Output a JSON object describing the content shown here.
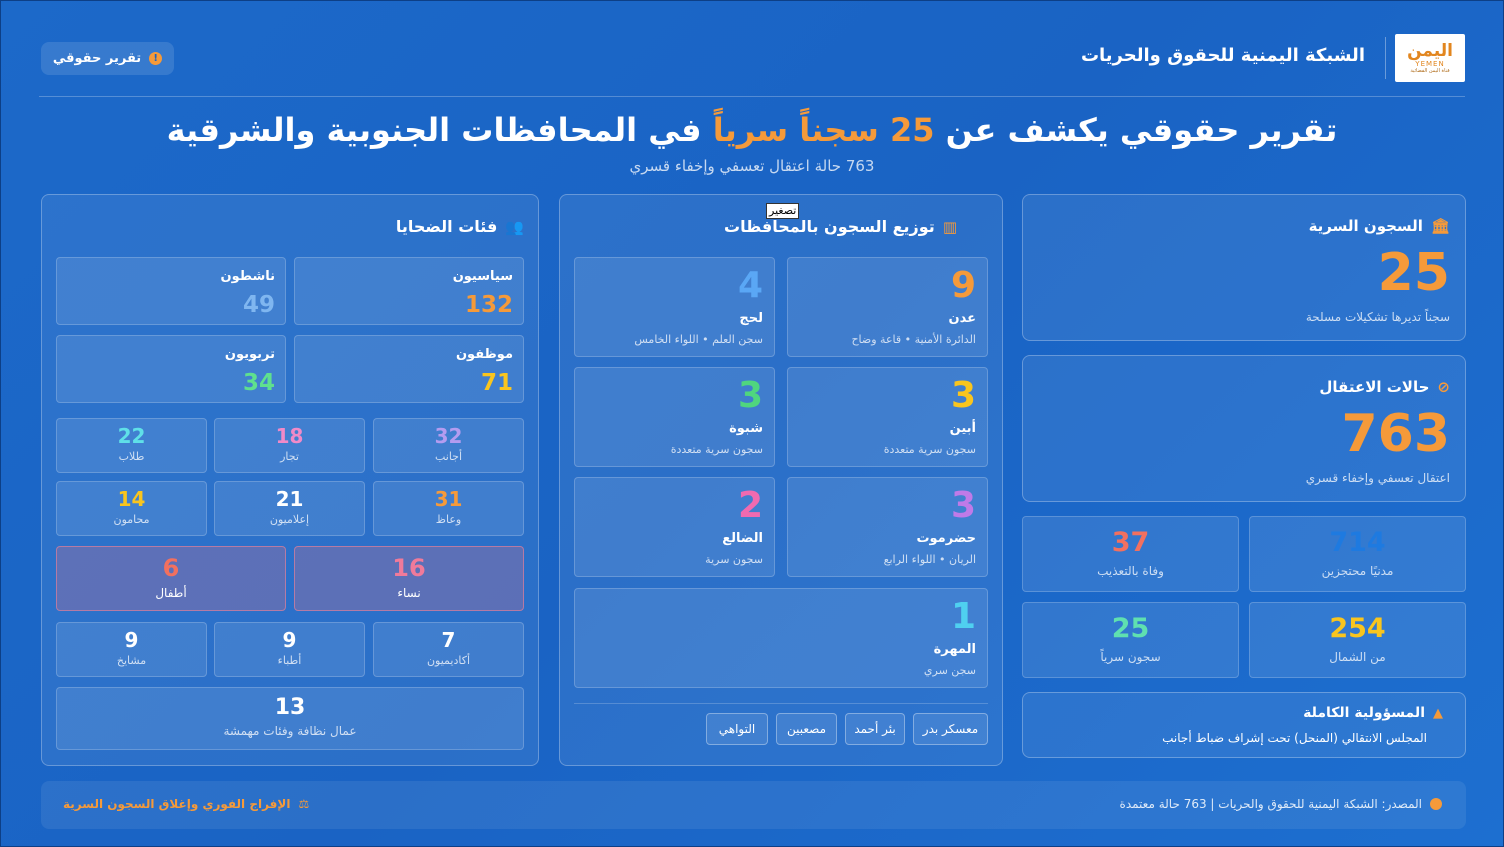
{
  "header": {
    "logo_ar": "اليمن",
    "logo_en": "YEMEN",
    "logo_sub": "قناة اليمن الفضائية",
    "org_name": "الشبكة اليمنية للحقوق والحريات",
    "badge": "تقرير حقوقي"
  },
  "title": {
    "part1": "تقرير حقوقي يكشف عن ",
    "highlight": "25 سجناً سرياً",
    "part2": " في المحافظات الجنوبية والشرقية",
    "subtitle": "763 حالة اعتقال تعسفي وإخفاء قسري"
  },
  "tooltip": "تصغير",
  "stats": {
    "prisons": {
      "title": "السجون السرية",
      "value": "25",
      "desc": "سجناً تديرها تشكيلات مسلحة"
    },
    "detentions": {
      "title": "حالات الاعتقال",
      "value": "763",
      "desc": "اعتقال تعسفي وإخفاء قسري"
    },
    "tiles": [
      {
        "value": "714",
        "label": "مدنيًا محتجزين",
        "color": "#1e7ae0"
      },
      {
        "value": "37",
        "label": "وفاة بالتعذيب",
        "color": "#f2705f"
      },
      {
        "value": "254",
        "label": "من الشمال",
        "color": "#f9c51e"
      },
      {
        "value": "25",
        "label": "سجون سرياً",
        "color": "#5fe0b0"
      }
    ],
    "responsibility": {
      "title": "المسؤولية الكاملة",
      "desc": "المجلس الانتقالي (المنحل) تحت إشراف ضباط أجانب"
    }
  },
  "distribution": {
    "title": "توزيع السجون بالمحافظات",
    "items": [
      {
        "value": "9",
        "name": "عدن",
        "desc": "الدائرة الأمنية • قاعة وضاح",
        "color": "#f59a3a"
      },
      {
        "value": "4",
        "name": "لحج",
        "desc": "سجن العلم • اللواء الخامس",
        "color": "#5aa7f5"
      },
      {
        "value": "3",
        "name": "أبين",
        "desc": "سجون سرية متعددة",
        "color": "#f9c51e"
      },
      {
        "value": "3",
        "name": "شبوة",
        "desc": "سجون سرية متعددة",
        "color": "#4fd67e"
      },
      {
        "value": "3",
        "name": "حضرموت",
        "desc": "الريان • اللواء الرابع",
        "color": "#c07ae8"
      },
      {
        "value": "2",
        "name": "الضالع",
        "desc": "سجون سرية",
        "color": "#f06ab0"
      },
      {
        "value": "1",
        "name": "المهرة",
        "desc": "سجن سري",
        "color": "#4fd0f0"
      }
    ],
    "chips": [
      "معسكر بدر",
      "بئر أحمد",
      "مصعبين",
      "التواهي"
    ]
  },
  "victims": {
    "title": "فئات الضحايا",
    "large": [
      {
        "name": "سياسيون",
        "value": "132",
        "color": "#f59a3a"
      },
      {
        "name": "ناشطون",
        "value": "49",
        "color": "#7fb6f0"
      },
      {
        "name": "موظفون",
        "value": "71",
        "color": "#f9c51e"
      },
      {
        "name": "تربويون",
        "value": "34",
        "color": "#5fe08e"
      }
    ],
    "row1": [
      {
        "value": "32",
        "label": "أجانب",
        "color": "#b49cf0"
      },
      {
        "value": "18",
        "label": "تجار",
        "color": "#f08ac8"
      },
      {
        "value": "22",
        "label": "طلاب",
        "color": "#5fe0e8"
      }
    ],
    "row2": [
      {
        "value": "31",
        "label": "وعاظ",
        "color": "#f59a3a"
      },
      {
        "value": "21",
        "label": "إعلاميون",
        "color": "#ffffff"
      },
      {
        "value": "14",
        "label": "محامون",
        "color": "#f9c51e"
      }
    ],
    "highlight": [
      {
        "value": "16",
        "label": "نساء",
        "color": "#f07a9a"
      },
      {
        "value": "6",
        "label": "أطفال",
        "color": "#f2705f"
      }
    ],
    "row3": [
      {
        "value": "7",
        "label": "أكاديميون",
        "color": "#ffffff"
      },
      {
        "value": "9",
        "label": "أطباء",
        "color": "#ffffff"
      },
      {
        "value": "9",
        "label": "مشايخ",
        "color": "#ffffff"
      }
    ],
    "bottom": {
      "value": "13",
      "label": "عمال نظافة وفئات مهمشة"
    }
  },
  "footer": {
    "source": "المصدر: الشبكة اليمنية للحقوق والحريات | 763 حالة معتمدة",
    "demand": "الإفراج الفوري وإغلاق السجون السرية"
  }
}
